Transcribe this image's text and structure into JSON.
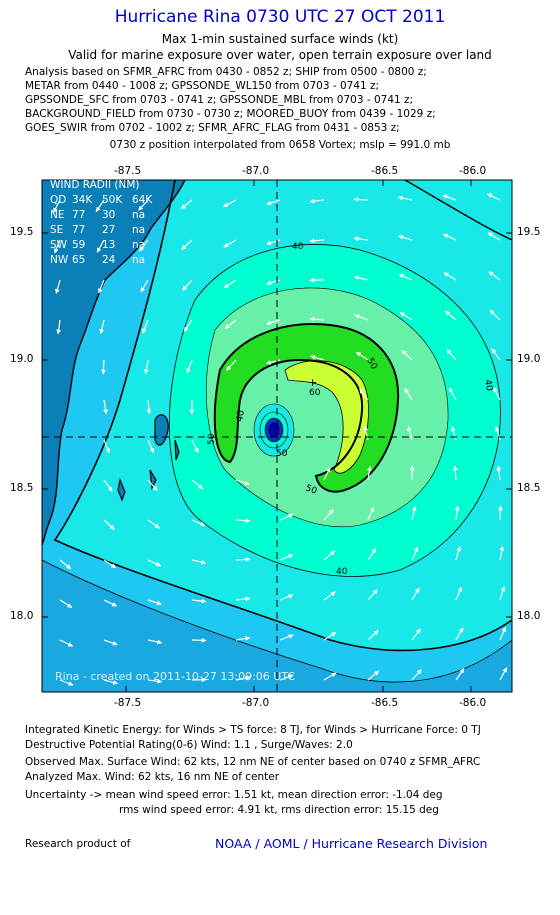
{
  "title": "Hurricane Rina 0730 UTC 27 OCT 2011",
  "subtitle_line1": "Max 1-min sustained surface winds (kt)",
  "subtitle_line2": "Valid for marine exposure over water, open terrain exposure over land",
  "analysis_lines": [
    "Analysis based on SFMR_AFRC from 0430 - 0852 z; SHIP from 0500 - 0800 z;",
    "METAR from 0440 - 1008 z; GPSSONDE_WL150 from 0703 - 0741 z;",
    "GPSSONDE_SFC from 0703 - 0741 z; GPSSONDE_MBL from 0703 - 0741 z;",
    "BACKGROUND_FIELD from 0730 - 0730 z; MOORED_BUOY from 0439 - 1029 z;",
    "GOES_SWIR from 0702 - 1002 z; SFMR_AFRC_FLAG from 0431 - 0853 z;"
  ],
  "position_line": "0730 z position interpolated from 0658 Vortex; mslp = 991.0 mb",
  "map": {
    "lon_ticks": [
      "-87.5",
      "-87.0",
      "-86.5",
      "-86.0"
    ],
    "lat_ticks": [
      "19.5",
      "19.0",
      "18.5",
      "18.0"
    ],
    "contour_labels": [
      "40",
      "40",
      "40",
      "50",
      "50",
      "50",
      "60",
      "50",
      "40"
    ],
    "center_marker": "+",
    "created_label": "Rina - created on 2011-10-27 13:09:06 UTC",
    "wind_radii": {
      "header": "WIND RADII (NM)",
      "columns": [
        "QD",
        "34K",
        "50K",
        "64K"
      ],
      "rows": [
        [
          "NE",
          "77",
          "30",
          "na"
        ],
        [
          "SE",
          "77",
          "27",
          "na"
        ],
        [
          "SW",
          "59",
          "13",
          "na"
        ],
        [
          "NW",
          "65",
          "24",
          "na"
        ]
      ]
    },
    "colors": {
      "land": "#0a7fb8",
      "ocean_outer": "#1ec8f0",
      "contour_30": "#18e8e8",
      "contour_40": "#00ffd0",
      "contour_45": "#66f0a8",
      "contour_50": "#22dd22",
      "contour_60": "#ccff33",
      "core": "#0000aa"
    }
  },
  "footer": {
    "ike": "Integrated Kinetic Energy:  for Winds > TS force: 8 TJ,  for Winds > Hurricane Force: 0 TJ",
    "dpr": "Destructive Potential Rating(0-6)   Wind: 1.1 , Surge/Waves: 2.0",
    "observed": "Observed Max. Surface Wind: 62 kts, 12 nm NE of center based on 0740 z SFMR_AFRC",
    "analyzed": "Analyzed Max. Wind: 62 kts, 16 nm NE of center",
    "uncertainty1": "Uncertainty -> mean wind speed error: 1.51 kt,   mean direction error:  -1.04 deg",
    "uncertainty2": "rms wind speed error: 4.91 kt,   rms direction error: 15.15 deg",
    "research": "Research product of",
    "org": "NOAA / AOML / Hurricane Research Division"
  }
}
